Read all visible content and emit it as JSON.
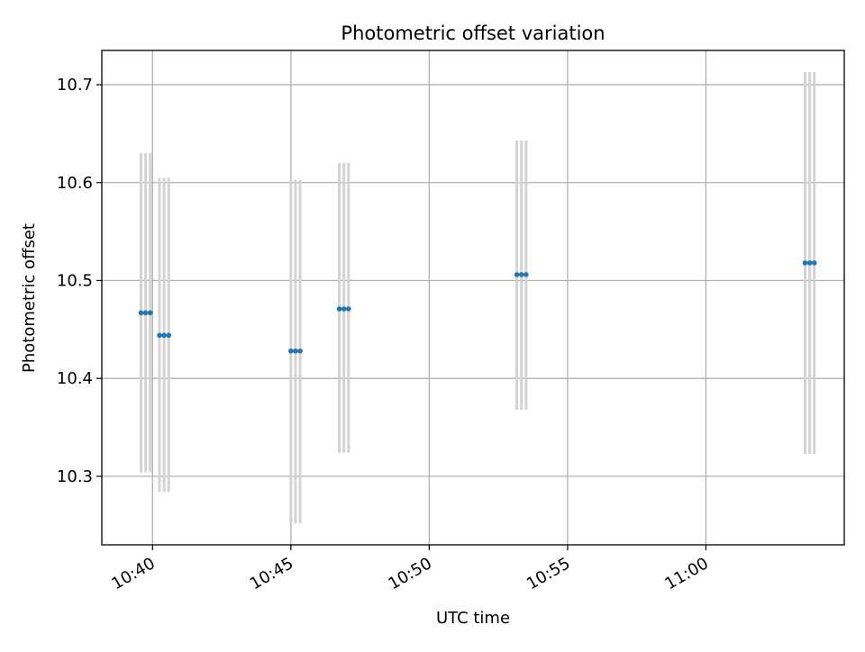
{
  "chart_data": {
    "type": "scatter",
    "title": "Photometric offset variation",
    "xlabel": "UTC time",
    "ylabel": "Photometric offset",
    "x_axis": {
      "kind": "time",
      "range": [
        "10:38:10",
        "11:05:00"
      ],
      "ticks": [
        "10:40",
        "10:45",
        "10:50",
        "10:55",
        "11:00"
      ],
      "tick_rotation_deg": -30
    },
    "y_axis": {
      "range": [
        10.23,
        10.735
      ],
      "ticks": [
        "10.3",
        "10.4",
        "10.5",
        "10.6",
        "10.7"
      ]
    },
    "grid": true,
    "series": [
      {
        "marker_color": "#1f77b4",
        "errorbar_color": "#d3d3d3",
        "points": [
          {
            "x": "10:39:35",
            "y": 10.467,
            "ylow": 10.304,
            "yhigh": 10.63
          },
          {
            "x": "10:39:45",
            "y": 10.467,
            "ylow": 10.304,
            "yhigh": 10.63
          },
          {
            "x": "10:39:55",
            "y": 10.467,
            "ylow": 10.304,
            "yhigh": 10.63
          },
          {
            "x": "10:40:15",
            "y": 10.444,
            "ylow": 10.284,
            "yhigh": 10.605
          },
          {
            "x": "10:40:25",
            "y": 10.444,
            "ylow": 10.284,
            "yhigh": 10.605
          },
          {
            "x": "10:40:35",
            "y": 10.444,
            "ylow": 10.284,
            "yhigh": 10.605
          },
          {
            "x": "10:45:00",
            "y": 10.428,
            "ylow": 10.252,
            "yhigh": 10.603
          },
          {
            "x": "10:45:10",
            "y": 10.428,
            "ylow": 10.252,
            "yhigh": 10.603
          },
          {
            "x": "10:45:20",
            "y": 10.428,
            "ylow": 10.252,
            "yhigh": 10.603
          },
          {
            "x": "10:46:45",
            "y": 10.471,
            "ylow": 10.324,
            "yhigh": 10.62
          },
          {
            "x": "10:46:55",
            "y": 10.471,
            "ylow": 10.324,
            "yhigh": 10.62
          },
          {
            "x": "10:47:05",
            "y": 10.471,
            "ylow": 10.324,
            "yhigh": 10.62
          },
          {
            "x": "10:53:10",
            "y": 10.506,
            "ylow": 10.368,
            "yhigh": 10.643
          },
          {
            "x": "10:53:20",
            "y": 10.506,
            "ylow": 10.368,
            "yhigh": 10.643
          },
          {
            "x": "10:53:30",
            "y": 10.506,
            "ylow": 10.368,
            "yhigh": 10.643
          },
          {
            "x": "11:03:35",
            "y": 10.518,
            "ylow": 10.323,
            "yhigh": 10.713
          },
          {
            "x": "11:03:45",
            "y": 10.518,
            "ylow": 10.323,
            "yhigh": 10.713
          },
          {
            "x": "11:03:55",
            "y": 10.518,
            "ylow": 10.323,
            "yhigh": 10.713
          }
        ]
      }
    ]
  }
}
